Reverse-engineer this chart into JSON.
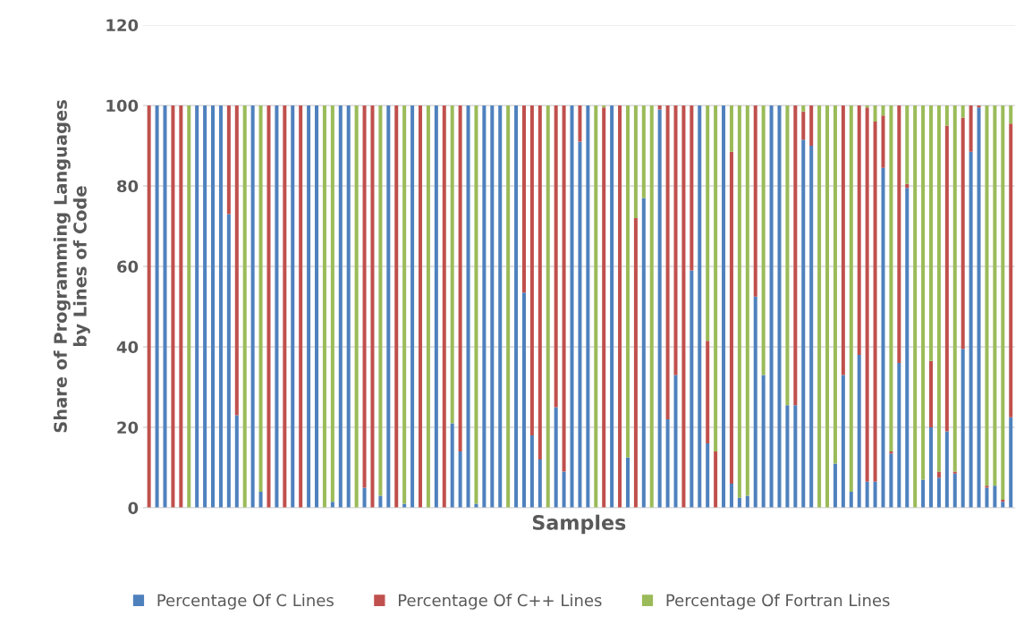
{
  "chart_data": {
    "type": "bar",
    "stacked": true,
    "xlabel": "Samples",
    "ylabel": "Share of Programming Languages\nby Lines of Code",
    "categories": [
      null,
      null,
      null,
      null,
      null,
      null,
      null,
      null,
      null,
      null,
      null,
      null,
      null,
      null,
      null,
      null,
      null,
      null,
      null,
      null,
      null,
      null,
      null,
      null,
      null,
      null,
      null,
      null,
      null,
      null,
      null,
      null,
      null,
      null,
      null,
      null,
      null,
      null,
      null,
      null,
      null,
      null,
      null,
      null,
      null,
      null,
      null,
      null,
      null,
      null,
      null,
      null,
      null,
      null,
      null,
      null,
      null,
      null,
      null,
      null,
      null,
      null,
      null,
      null,
      null,
      null,
      null,
      null,
      null,
      null,
      null,
      null,
      null,
      null,
      null,
      null,
      null,
      null,
      null,
      null,
      null,
      null,
      null,
      null,
      null,
      null,
      null,
      null,
      null,
      null,
      null,
      null,
      null,
      null,
      null,
      null,
      null,
      null,
      null,
      null,
      null,
      null,
      null,
      null,
      null,
      null,
      null,
      null,
      null
    ],
    "series": [
      {
        "name": "Percentage Of C Lines",
        "color": "#4f81bd",
        "values": [
          0,
          100,
          100,
          0,
          0,
          0,
          100,
          100,
          100,
          100,
          73,
          23,
          0,
          100,
          4,
          0,
          100,
          0,
          100,
          0,
          100,
          100,
          0,
          1.5,
          100,
          100,
          0,
          5,
          0,
          3,
          100,
          0,
          1,
          100,
          0,
          0,
          100,
          0,
          21,
          14,
          100,
          1,
          100,
          100,
          100,
          0,
          100,
          53.5,
          18,
          12,
          0,
          25,
          9,
          100,
          91,
          100,
          0,
          0,
          100,
          0,
          12.5,
          0,
          77,
          0,
          99,
          22,
          33,
          0,
          59,
          100,
          16,
          0,
          100,
          6,
          2.5,
          3,
          52.5,
          33,
          100,
          100,
          25.5,
          25.5,
          91.5,
          90,
          0,
          0,
          11,
          33,
          4,
          38,
          6.5,
          6.5,
          84.5,
          13.5,
          36,
          79.5,
          0,
          7,
          20,
          7.5,
          19,
          8.5,
          39.5,
          88.5,
          99.5,
          5,
          5.5,
          1.5,
          22.5
        ]
      },
      {
        "name": "Percentage Of C++ Lines",
        "color": "#c0504d",
        "values": [
          100,
          0,
          0,
          100,
          100,
          0,
          0,
          0,
          0,
          0,
          27,
          77,
          0,
          0,
          0,
          100,
          0,
          100,
          0,
          100,
          0,
          0,
          0,
          0,
          0,
          0,
          0,
          95,
          100,
          0,
          0,
          100,
          0,
          0,
          100,
          0,
          0,
          100,
          0,
          86,
          0,
          0,
          0,
          0,
          0,
          0,
          0,
          46.5,
          82,
          88,
          0,
          75,
          91,
          0,
          9,
          0,
          0,
          99.5,
          0,
          100,
          0,
          72,
          0,
          0,
          1,
          78,
          67,
          100,
          41,
          0,
          25.5,
          14,
          0,
          82.5,
          0,
          0,
          47.5,
          0,
          0,
          0,
          0,
          74.5,
          7,
          10,
          0,
          0,
          0,
          67,
          0,
          62,
          93,
          89.5,
          13,
          0.5,
          64,
          1,
          0,
          0,
          16.5,
          1.5,
          76,
          0.5,
          57.5,
          11.5,
          0.5,
          0.5,
          0,
          0.5,
          73
        ]
      },
      {
        "name": "Percentage Of Fortran Lines",
        "color": "#9bbb59",
        "values": [
          0,
          0,
          0,
          0,
          0,
          100,
          0,
          0,
          0,
          0,
          0,
          0,
          100,
          0,
          96,
          0,
          0,
          0,
          0,
          0,
          0,
          0,
          100,
          98.5,
          0,
          0,
          100,
          0,
          0,
          97,
          0,
          0,
          99,
          0,
          0,
          100,
          0,
          0,
          79,
          0,
          0,
          99,
          0,
          0,
          0,
          100,
          0,
          0,
          0,
          0,
          100,
          0,
          0,
          0,
          0,
          0,
          100,
          0.5,
          0,
          0,
          87.5,
          28,
          23,
          100,
          0,
          0,
          0,
          0,
          0,
          0,
          58.5,
          86,
          0,
          11.5,
          97.5,
          97,
          0,
          67,
          0,
          0,
          74.5,
          0,
          1.5,
          0,
          100,
          100,
          89,
          0,
          96,
          0,
          0.5,
          4,
          2.5,
          86,
          0,
          19.5,
          100,
          93,
          63.5,
          91,
          5,
          91,
          3,
          0,
          0,
          94.5,
          94.5,
          98,
          4.5
        ]
      }
    ],
    "ylim": [
      0,
      120
    ],
    "yticks": [
      0,
      20,
      40,
      60,
      80,
      100,
      120
    ],
    "grid": "y",
    "legend": "bottom",
    "tick_labels": "y"
  }
}
